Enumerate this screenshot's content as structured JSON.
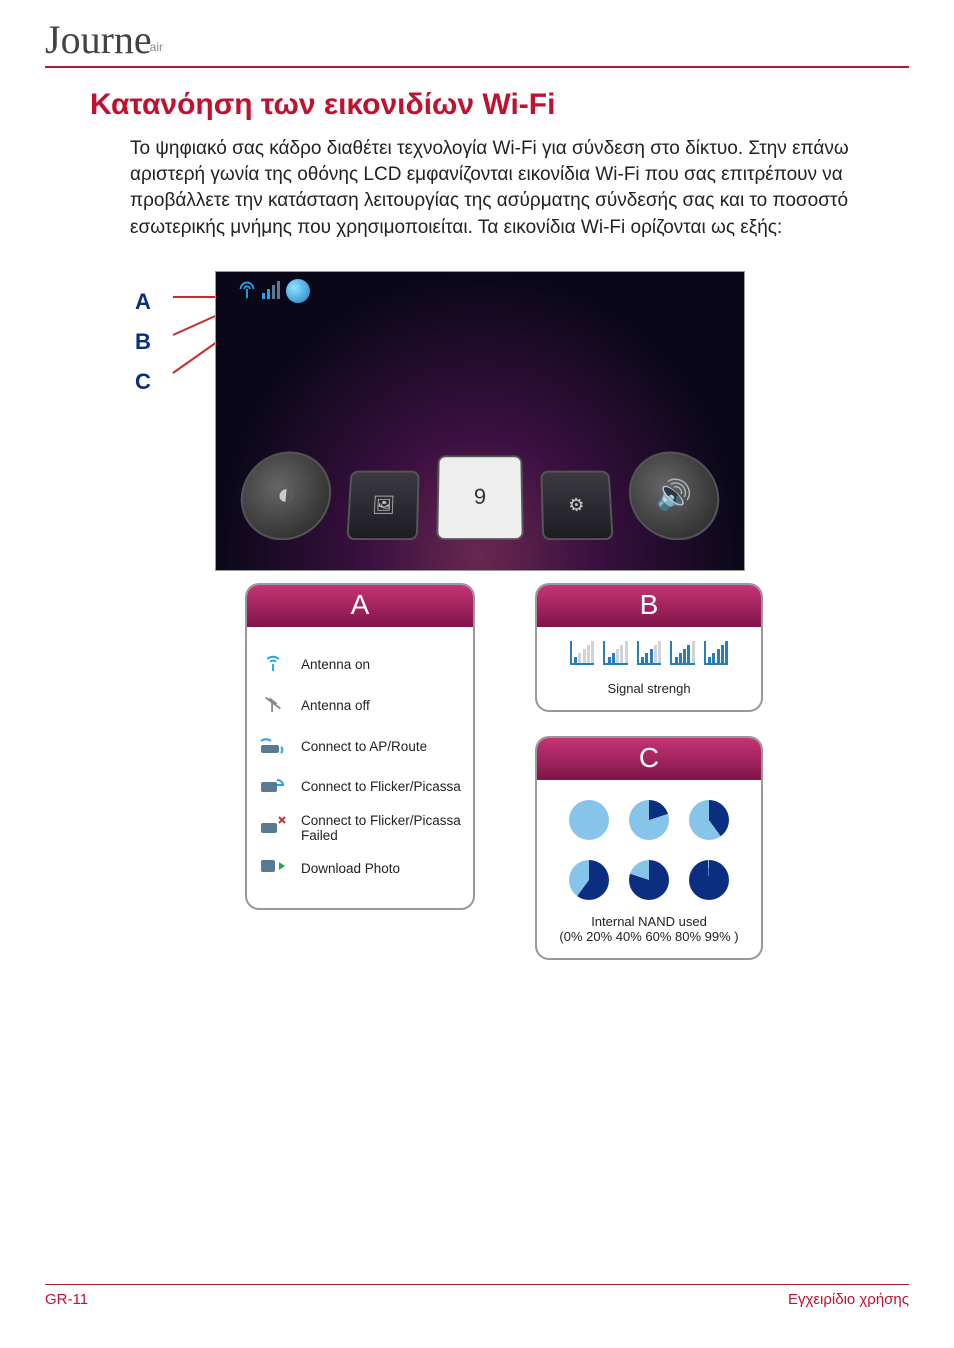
{
  "logo": {
    "script": "Journe",
    "sub": "air"
  },
  "heading": "Κατανόηση των εικονιδίων Wi-Fi",
  "intro": "Το ψηφιακό σας κάδρο διαθέτει τεχνολογία Wi-Fi για σύνδεση στο δίκτυο. Στην επάνω αριστερή γωνία της οθόνης LCD εμφανίζονται εικονίδια Wi-Fi που σας επιτρέπουν να προβάλλετε την κατάσταση λειτουργίας της ασύρματης σύνδεσής σας και το ποσοστό εσωτερικής μνήμης που χρησιμοποιείται. Τα εικονίδια Wi-Fi ορίζονται ως εξής:",
  "callouts": {
    "a": "A",
    "b": "B",
    "c": "C"
  },
  "panelA": {
    "title": "A",
    "rows": [
      {
        "label": "Antenna on",
        "icon": "antenna-on-icon",
        "color": "#1fa6e8"
      },
      {
        "label": "Antenna off",
        "icon": "antenna-off-icon",
        "color": "#888888"
      },
      {
        "label": "Connect to AP/Route",
        "icon": "router-icon",
        "color": "#1fa6e8"
      },
      {
        "label": "Connect to Flicker/Picassa",
        "icon": "cloud-connect-icon",
        "color": "#1fa6e8"
      },
      {
        "label": "Connect to Flicker/Picassa Failed",
        "icon": "cloud-fail-icon",
        "color": "#cc3333"
      },
      {
        "label": "Download Photo",
        "icon": "download-icon",
        "color": "#1fa6e8"
      }
    ]
  },
  "panelB": {
    "title": "B",
    "label": "Signal strengh",
    "bar_color_on": "#2a7eb8",
    "bar_color_off": "#cfd4d9",
    "levels": [
      1,
      2,
      3,
      4,
      5
    ]
  },
  "panelC": {
    "title": "C",
    "line1": "Internal NAND used",
    "line2": "(0% 20% 40% 60% 80% 99% )",
    "pie_fill": "#0b2e80",
    "pie_bg": "#86c4ea",
    "percents": [
      0,
      20,
      40,
      60,
      80,
      99
    ]
  },
  "footer": {
    "left": "GR-11",
    "right": "Εγχειρίδιο χρήσης"
  },
  "colors": {
    "accent": "#c2102f",
    "rule": "#a61e2b",
    "panel_header_top": "#c53574",
    "panel_header_bot": "#7f1449",
    "callout_blue": "#0b2e80"
  }
}
